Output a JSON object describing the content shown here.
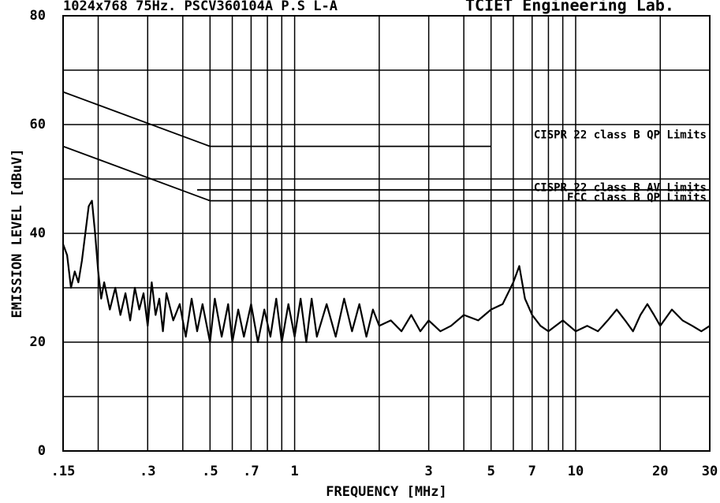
{
  "chart_data": {
    "type": "line",
    "title": "1024x768 75Hz. PSCV360104A P.S  L-A",
    "subtitle": "TCIET Engineering Lab.",
    "xlabel": "FREQUENCY [MHz]",
    "ylabel": "EMISSION LEVEL [dBuV]",
    "xscale": "log",
    "grid": true,
    "xlim": [
      0.15,
      30
    ],
    "ylim": [
      0,
      80
    ],
    "xticks": [
      {
        "value": 0.15,
        "label": ".15"
      },
      {
        "value": 0.3,
        "label": ".3"
      },
      {
        "value": 0.5,
        "label": ".5"
      },
      {
        "value": 0.7,
        "label": ".7"
      },
      1,
      3,
      5,
      7,
      10,
      20,
      30
    ],
    "yticks": [
      0,
      20,
      40,
      60,
      80
    ],
    "xgrid": [
      0.2,
      0.4,
      0.6,
      0.8,
      0.9,
      2,
      4,
      6,
      8,
      9
    ],
    "ygrid": [
      10,
      30,
      50,
      70
    ],
    "x": [
      0.15,
      0.155,
      0.16,
      0.165,
      0.17,
      0.175,
      0.18,
      0.185,
      0.19,
      0.195,
      0.2,
      0.205,
      0.21,
      0.22,
      0.23,
      0.24,
      0.25,
      0.26,
      0.27,
      0.28,
      0.29,
      0.3,
      0.31,
      0.32,
      0.33,
      0.34,
      0.35,
      0.37,
      0.39,
      0.41,
      0.43,
      0.45,
      0.47,
      0.5,
      0.52,
      0.55,
      0.58,
      0.6,
      0.63,
      0.66,
      0.7,
      0.74,
      0.78,
      0.82,
      0.86,
      0.9,
      0.95,
      1,
      1.05,
      1.1,
      1.15,
      1.2,
      1.3,
      1.4,
      1.5,
      1.6,
      1.7,
      1.8,
      1.9,
      2,
      2.2,
      2.4,
      2.6,
      2.8,
      3,
      3.3,
      3.6,
      4,
      4.5,
      5,
      5.5,
      6,
      6.3,
      6.6,
      7,
      7.5,
      8,
      9,
      10,
      11,
      12,
      13,
      14,
      15,
      16,
      17,
      18,
      19,
      20,
      22,
      24,
      26,
      28,
      30
    ],
    "series": [
      {
        "color": "#000000",
        "values": [
          38,
          36,
          30,
          33,
          31,
          35,
          40,
          45,
          46,
          40,
          33,
          28,
          31,
          26,
          30,
          25,
          29,
          24,
          30,
          26,
          29,
          23,
          31,
          25,
          28,
          22,
          29,
          24,
          27,
          21,
          28,
          22,
          27,
          20,
          28,
          21,
          27,
          20,
          26,
          21,
          27,
          20,
          26,
          21,
          28,
          20,
          27,
          21,
          28,
          20,
          28,
          21,
          27,
          21,
          28,
          22,
          27,
          21,
          26,
          23,
          24,
          22,
          25,
          22,
          24,
          22,
          23,
          25,
          24,
          26,
          27,
          31,
          34,
          28,
          25,
          23,
          22,
          24,
          22,
          23,
          22,
          24,
          26,
          24,
          22,
          25,
          27,
          25,
          23,
          26,
          24,
          23,
          22,
          23
        ]
      }
    ],
    "limits": [
      {
        "name": "CISPR 22 class B QP Limits",
        "x": [
          0.15,
          0.5,
          5
        ],
        "values": [
          66,
          56,
          56
        ]
      },
      {
        "name": "CISPR 22 class B AV Limits",
        "x": [
          0.15,
          0.5,
          30
        ],
        "values": [
          56,
          46,
          46
        ]
      },
      {
        "name": "FCC class B QP Limits",
        "x": [
          0.45,
          30
        ],
        "values": [
          48,
          48
        ]
      }
    ]
  }
}
